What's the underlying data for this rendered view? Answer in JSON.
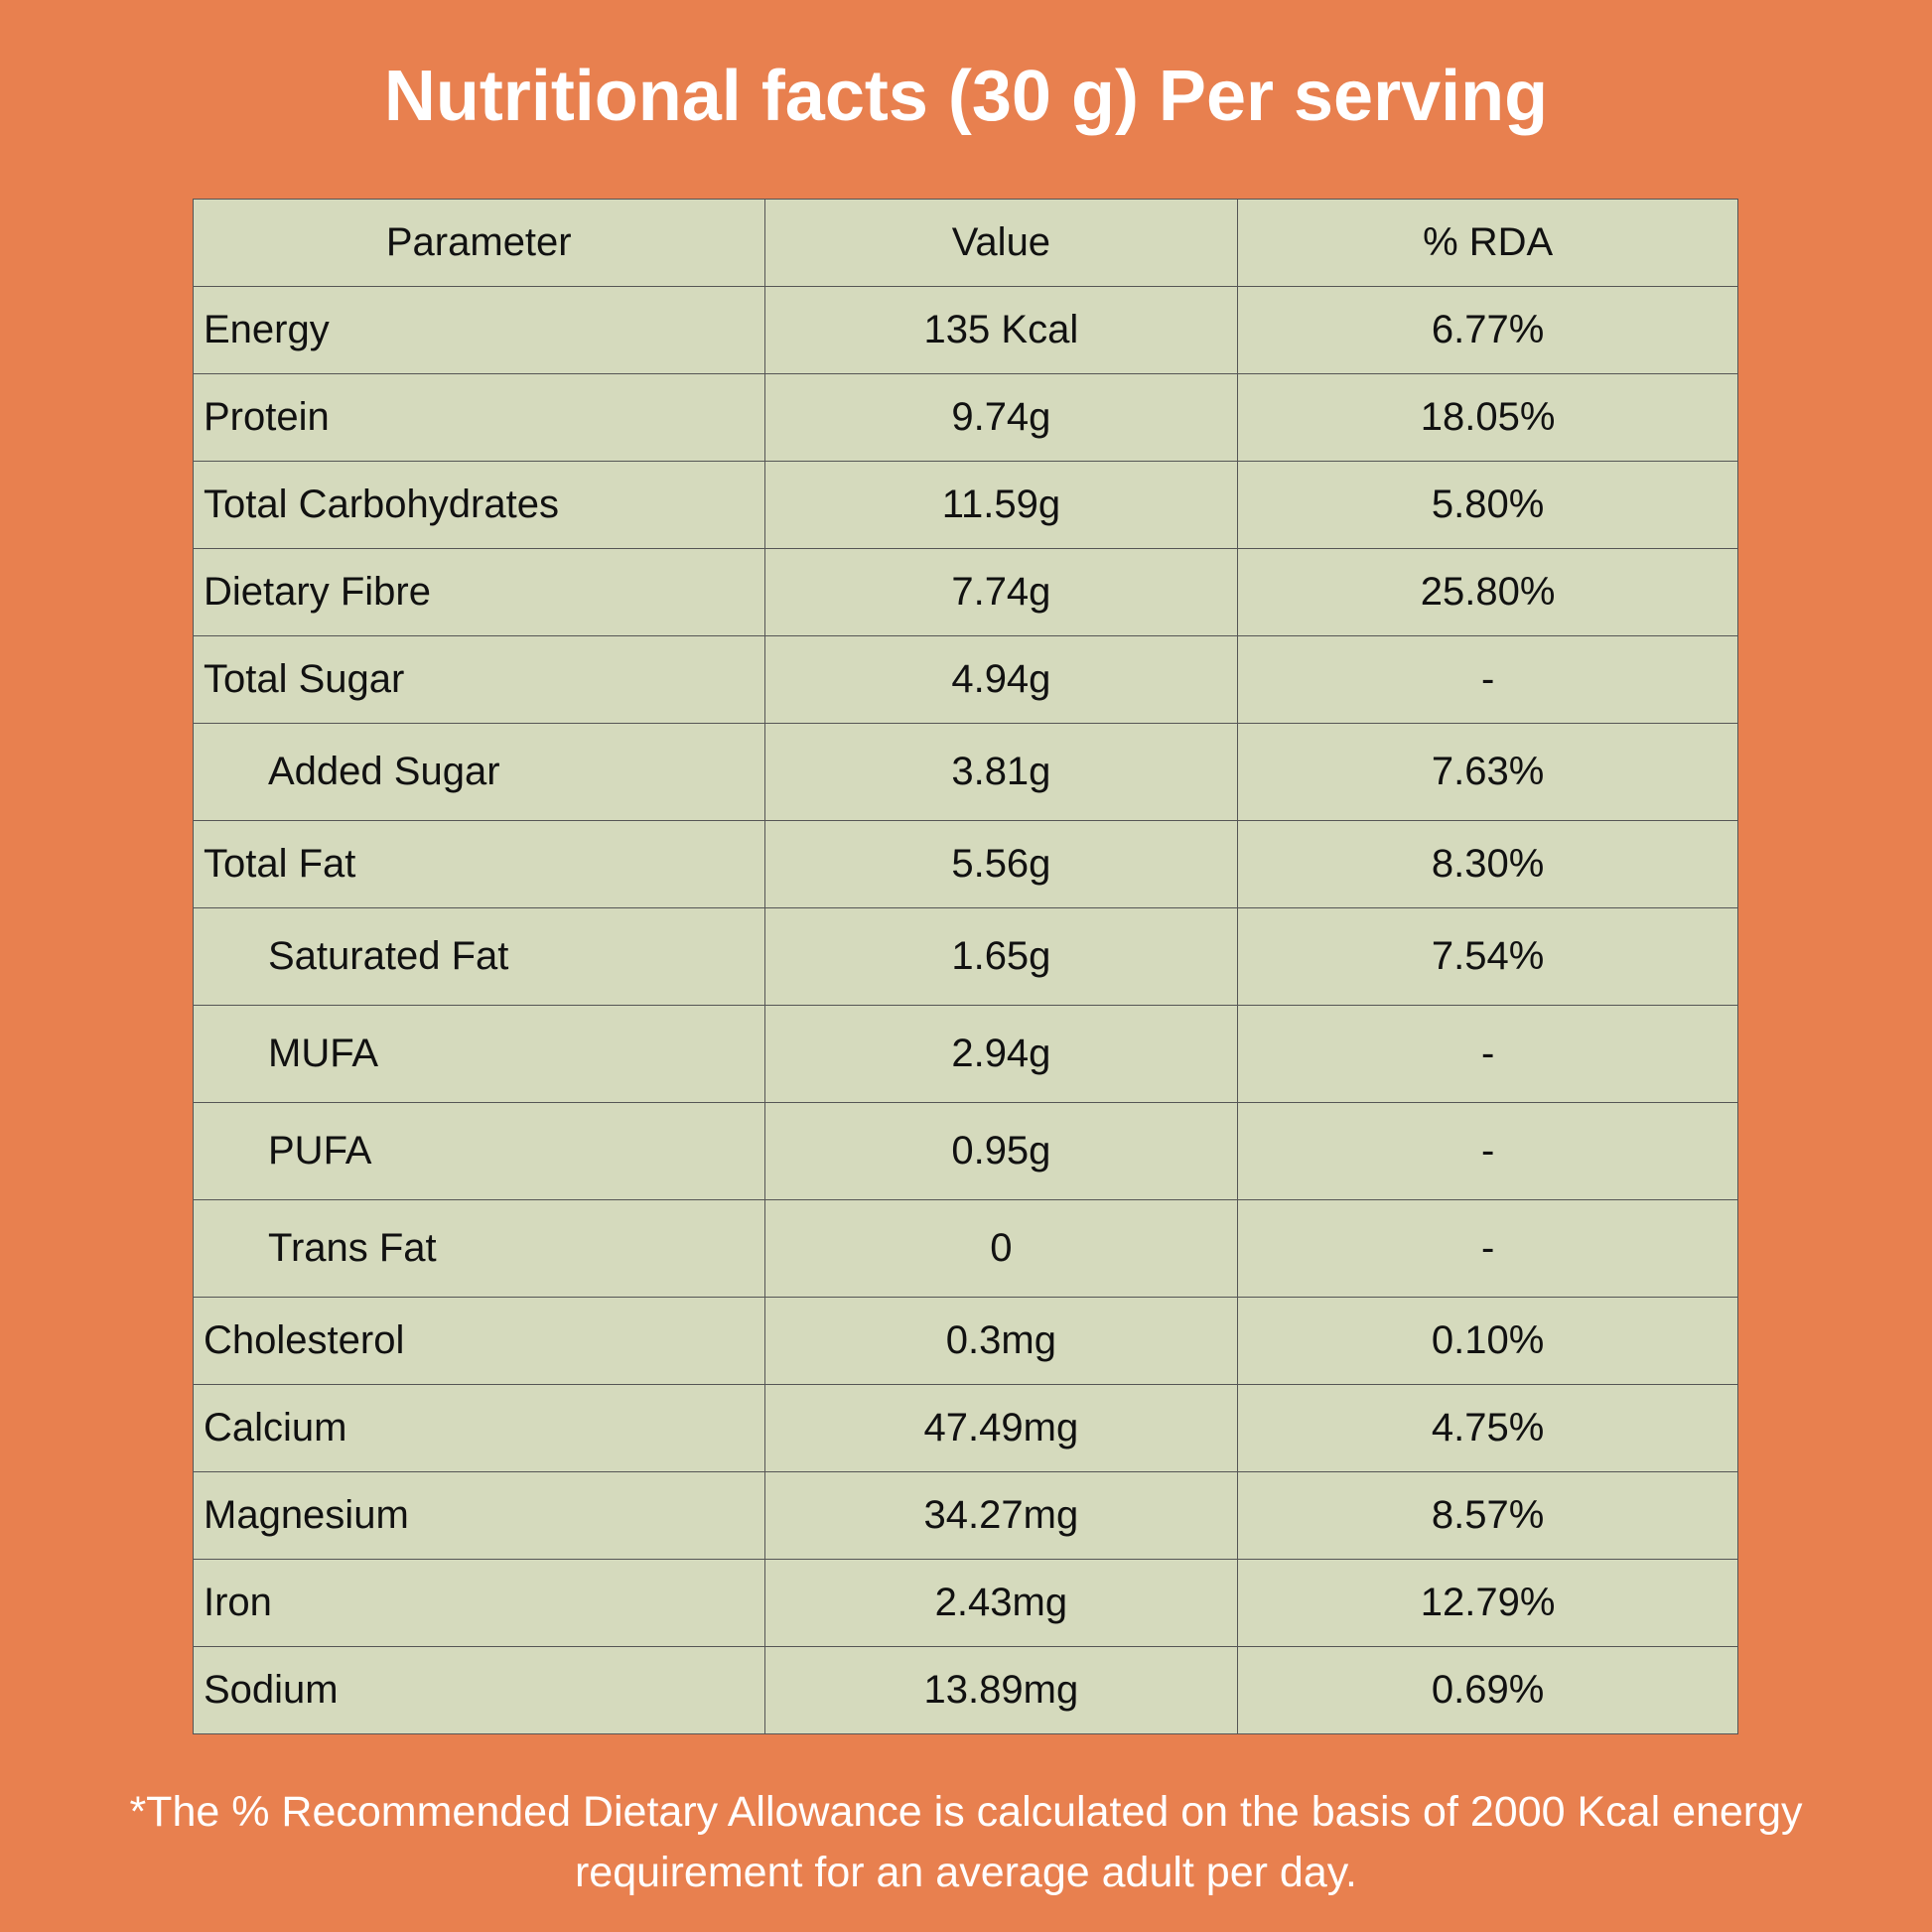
{
  "title": "Nutritional facts (30 g) Per serving",
  "table": {
    "headers": [
      "Parameter",
      "Value",
      "% RDA"
    ],
    "rows": [
      {
        "parameter": "Energy",
        "value": "135 Kcal",
        "rda": "6.77%",
        "sub": false
      },
      {
        "parameter": "Protein",
        "value": "9.74g",
        "rda": "18.05%",
        "sub": false
      },
      {
        "parameter": "Total Carbohydrates",
        "value": "11.59g",
        "rda": "5.80%",
        "sub": false
      },
      {
        "parameter": "Dietary Fibre",
        "value": "7.74g",
        "rda": "25.80%",
        "sub": false
      },
      {
        "parameter": "Total Sugar",
        "value": "4.94g",
        "rda": "-",
        "sub": false
      },
      {
        "parameter": "Added Sugar",
        "value": "3.81g",
        "rda": "7.63%",
        "sub": true
      },
      {
        "parameter": "Total Fat",
        "value": "5.56g",
        "rda": "8.30%",
        "sub": false
      },
      {
        "parameter": "Saturated Fat",
        "value": "1.65g",
        "rda": "7.54%",
        "sub": true
      },
      {
        "parameter": "MUFA",
        "value": "2.94g",
        "rda": "-",
        "sub": true
      },
      {
        "parameter": "PUFA",
        "value": "0.95g",
        "rda": "-",
        "sub": true
      },
      {
        "parameter": "Trans Fat",
        "value": "0",
        "rda": "-",
        "sub": true
      },
      {
        "parameter": "Cholesterol",
        "value": "0.3mg",
        "rda": "0.10%",
        "sub": false
      },
      {
        "parameter": "Calcium",
        "value": "47.49mg",
        "rda": "4.75%",
        "sub": false
      },
      {
        "parameter": "Magnesium",
        "value": "34.27mg",
        "rda": "8.57%",
        "sub": false
      },
      {
        "parameter": "Iron",
        "value": "2.43mg",
        "rda": "12.79%",
        "sub": false
      },
      {
        "parameter": "Sodium",
        "value": "13.89mg",
        "rda": "0.69%",
        "sub": false
      }
    ]
  },
  "footnote": "*The % Recommended Dietary Allowance is calculated on the basis of 2000 Kcal energy requirement for an average adult per day.",
  "colors": {
    "background": "#E8804F",
    "table": "#D5DABD"
  }
}
